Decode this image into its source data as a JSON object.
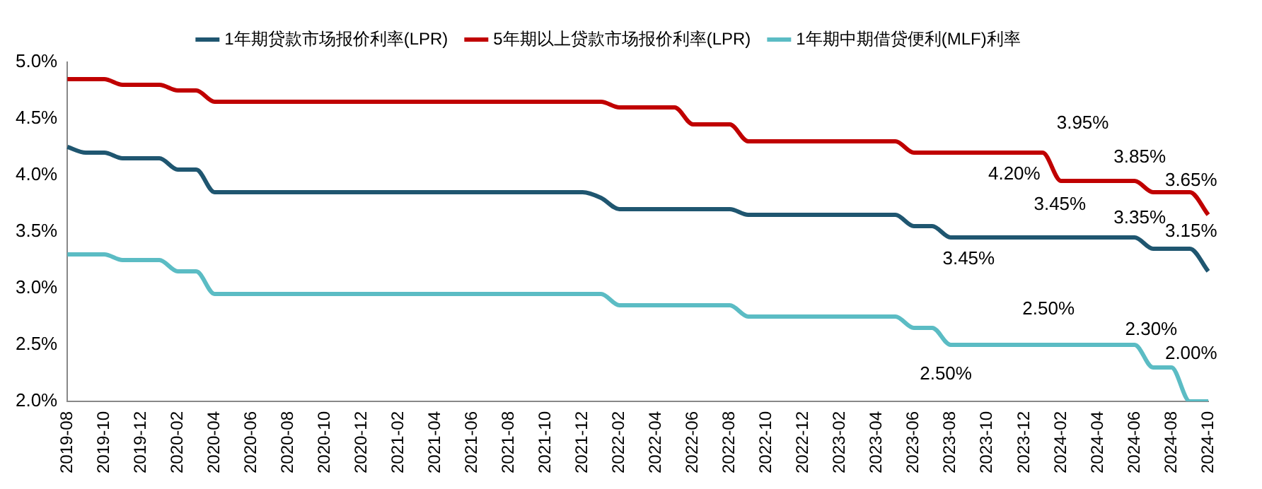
{
  "chart_data": {
    "type": "line",
    "categories": [
      "2019-08",
      null,
      "2019-10",
      null,
      "2019-12",
      null,
      "2020-02",
      null,
      "2020-04",
      null,
      "2020-06",
      null,
      "2020-08",
      null,
      "2020-10",
      null,
      "2020-12",
      null,
      "2021-02",
      null,
      "2021-04",
      null,
      "2021-06",
      null,
      "2021-08",
      null,
      "2021-10",
      null,
      "2021-12",
      null,
      "2022-02",
      null,
      "2022-04",
      null,
      "2022-06",
      null,
      "2022-08",
      null,
      "2022-10",
      null,
      "2022-12",
      null,
      "2023-02",
      null,
      "2023-04",
      null,
      "2023-06",
      null,
      "2023-08",
      null,
      "2023-10",
      null,
      "2023-12",
      null,
      "2024-02",
      null,
      "2024-04",
      null,
      "2024-06",
      null,
      "2024-08",
      null,
      "2024-10"
    ],
    "series": [
      {
        "name": "1年期贷款市场报价利率(LPR)",
        "color": "#1f5670",
        "values": [
          4.25,
          4.2,
          4.2,
          4.15,
          4.15,
          4.15,
          4.05,
          4.05,
          3.85,
          3.85,
          3.85,
          3.85,
          3.85,
          3.85,
          3.85,
          3.85,
          3.85,
          3.85,
          3.85,
          3.85,
          3.85,
          3.85,
          3.85,
          3.85,
          3.85,
          3.85,
          3.85,
          3.85,
          3.85,
          3.8,
          3.7,
          3.7,
          3.7,
          3.7,
          3.7,
          3.7,
          3.7,
          3.65,
          3.65,
          3.65,
          3.65,
          3.65,
          3.65,
          3.65,
          3.65,
          3.65,
          3.55,
          3.55,
          3.45,
          3.45,
          3.45,
          3.45,
          3.45,
          3.45,
          3.45,
          3.45,
          3.45,
          3.45,
          3.45,
          3.35,
          3.35,
          3.35,
          3.15
        ]
      },
      {
        "name": "5年期以上贷款市场报价利率(LPR)",
        "color": "#c00000",
        "values": [
          4.85,
          4.85,
          4.85,
          4.8,
          4.8,
          4.8,
          4.75,
          4.75,
          4.65,
          4.65,
          4.65,
          4.65,
          4.65,
          4.65,
          4.65,
          4.65,
          4.65,
          4.65,
          4.65,
          4.65,
          4.65,
          4.65,
          4.65,
          4.65,
          4.65,
          4.65,
          4.65,
          4.65,
          4.65,
          4.65,
          4.6,
          4.6,
          4.6,
          4.6,
          4.45,
          4.45,
          4.45,
          4.3,
          4.3,
          4.3,
          4.3,
          4.3,
          4.3,
          4.3,
          4.3,
          4.3,
          4.2,
          4.2,
          4.2,
          4.2,
          4.2,
          4.2,
          4.2,
          4.2,
          3.95,
          3.95,
          3.95,
          3.95,
          3.95,
          3.85,
          3.85,
          3.85,
          3.65
        ]
      },
      {
        "name": "1年期中期借贷便利(MLF)利率",
        "color": "#5bbcc4",
        "values": [
          3.3,
          3.3,
          3.3,
          3.25,
          3.25,
          3.25,
          3.15,
          3.15,
          2.95,
          2.95,
          2.95,
          2.95,
          2.95,
          2.95,
          2.95,
          2.95,
          2.95,
          2.95,
          2.95,
          2.95,
          2.95,
          2.95,
          2.95,
          2.95,
          2.95,
          2.95,
          2.95,
          2.95,
          2.95,
          2.95,
          2.85,
          2.85,
          2.85,
          2.85,
          2.85,
          2.85,
          2.85,
          2.75,
          2.75,
          2.75,
          2.75,
          2.75,
          2.75,
          2.75,
          2.75,
          2.75,
          2.65,
          2.65,
          2.5,
          2.5,
          2.5,
          2.5,
          2.5,
          2.5,
          2.5,
          2.5,
          2.5,
          2.5,
          2.5,
          2.3,
          2.3,
          2.0,
          2.0
        ]
      }
    ],
    "ylim": [
      2.0,
      5.0
    ],
    "yticks": [
      {
        "value": 2.0,
        "label": "2.0%"
      },
      {
        "value": 2.5,
        "label": "2.5%"
      },
      {
        "value": 3.0,
        "label": "3.0%"
      },
      {
        "value": 3.5,
        "label": "3.5%"
      },
      {
        "value": 4.0,
        "label": "4.0%"
      },
      {
        "value": 4.5,
        "label": "4.5%"
      },
      {
        "value": 5.0,
        "label": "5.0%"
      }
    ],
    "annotations": [
      "4.20%",
      "3.95%",
      "3.45%",
      "3.85%",
      "3.65%",
      "3.45%",
      "3.35%",
      "3.15%",
      "2.50%",
      "2.30%",
      "2.00%",
      "2.50%"
    ],
    "grid": false,
    "legend": "top",
    "marker": "none",
    "line_style": "solid"
  }
}
